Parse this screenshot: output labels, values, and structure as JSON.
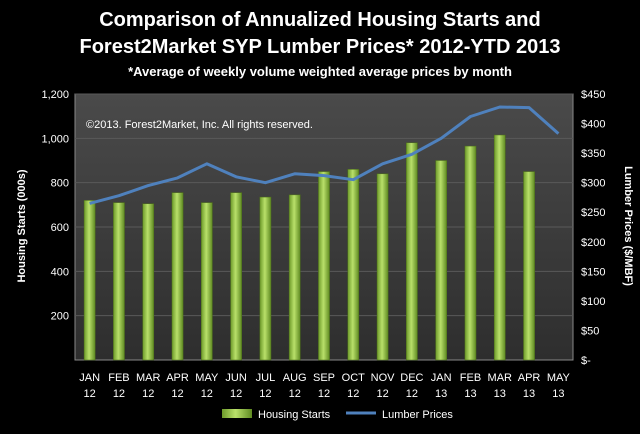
{
  "chart_data": {
    "type": "bar",
    "title_line1": "Comparison of Annualized Housing Starts and",
    "title_line2": "Forest2Market SYP Lumber Prices* 2012-YTD 2013",
    "subtitle": "*Average of  weekly volume weighted average prices by month",
    "annotation": "©2013. Forest2Market, Inc. All rights reserved.",
    "categories": [
      [
        "JAN",
        "12"
      ],
      [
        "FEB",
        "12"
      ],
      [
        "MAR",
        "12"
      ],
      [
        "APR",
        "12"
      ],
      [
        "MAY",
        "12"
      ],
      [
        "JUN",
        "12"
      ],
      [
        "JUL",
        "12"
      ],
      [
        "AUG",
        "12"
      ],
      [
        "SEP",
        "12"
      ],
      [
        "OCT",
        "12"
      ],
      [
        "NOV",
        "12"
      ],
      [
        "DEC",
        "12"
      ],
      [
        "JAN",
        "13"
      ],
      [
        "FEB",
        "13"
      ],
      [
        "MAR",
        "13"
      ],
      [
        "APR",
        "13"
      ],
      [
        "MAY",
        "13"
      ]
    ],
    "series": [
      {
        "name": "Housing Starts",
        "type": "bar",
        "axis": "left",
        "color": "#8cbf3f",
        "values": [
          720,
          710,
          705,
          755,
          710,
          755,
          735,
          745,
          850,
          860,
          840,
          980,
          900,
          965,
          1015,
          850,
          null
        ]
      },
      {
        "name": "Lumber Prices",
        "type": "line",
        "axis": "right",
        "color": "#4f81bd",
        "values": [
          265,
          278,
          295,
          308,
          332,
          310,
          300,
          315,
          312,
          305,
          332,
          348,
          375,
          412,
          428,
          427,
          383
        ]
      }
    ],
    "ylabel": "Housing Starts (000s)",
    "ylim": [
      0,
      1200
    ],
    "yticks": [
      "200",
      "400",
      "600",
      "800",
      "1,000",
      "1,200"
    ],
    "y2label": "Lumber Prices ($/MBF)",
    "y2lim": [
      0,
      450
    ],
    "y2ticks": [
      "$-",
      "$50",
      "$100",
      "$150",
      "$200",
      "$250",
      "$300",
      "$350",
      "$400",
      "$450"
    ],
    "legend": [
      "Housing Starts",
      "Lumber Prices"
    ],
    "plot_background": "#3a3a3a"
  }
}
